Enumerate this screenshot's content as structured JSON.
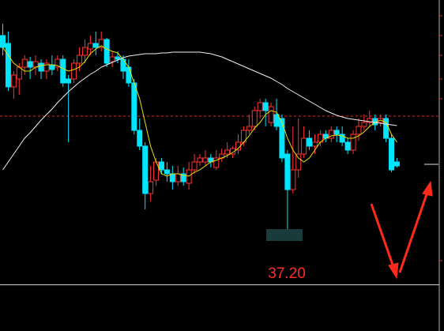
{
  "chart_data": {
    "type": "candlestick",
    "ylim": [
      35.8,
      43.0
    ],
    "up_color": "#ff3232",
    "down_color": "#00e5ff",
    "reference_line": {
      "value": 40.06,
      "color": "#c83232"
    },
    "ohlc": [
      [
        42.1,
        42.4,
        41.6,
        41.8
      ],
      [
        41.9,
        42.2,
        40.7,
        40.8
      ],
      [
        40.8,
        41.2,
        40.5,
        41.1
      ],
      [
        41.0,
        41.4,
        40.6,
        41.3
      ],
      [
        41.3,
        41.6,
        41.1,
        41.5
      ],
      [
        41.44,
        41.56,
        41.0,
        41.3
      ],
      [
        41.3,
        41.6,
        41.1,
        41.44
      ],
      [
        41.4,
        41.5,
        41.0,
        41.2
      ],
      [
        41.2,
        41.5,
        41.0,
        41.4
      ],
      [
        41.36,
        41.6,
        41.1,
        41.24
      ],
      [
        41.3,
        41.6,
        41.2,
        41.5
      ],
      [
        41.5,
        41.6,
        40.8,
        40.9
      ],
      [
        41.0,
        41.1,
        39.4,
        40.9
      ],
      [
        41.0,
        41.5,
        40.9,
        41.4
      ],
      [
        41.4,
        41.8,
        41.2,
        41.6
      ],
      [
        41.6,
        42.0,
        41.4,
        41.8
      ],
      [
        41.76,
        42.1,
        41.6,
        41.9
      ],
      [
        41.9,
        42.2,
        41.6,
        41.8
      ],
      [
        41.8,
        42.2,
        41.7,
        42.0
      ],
      [
        42.0,
        42.04,
        41.3,
        41.4
      ],
      [
        41.44,
        41.7,
        41.3,
        41.56
      ],
      [
        41.56,
        41.7,
        41.4,
        41.5
      ],
      [
        41.5,
        41.6,
        41.0,
        41.2
      ],
      [
        41.3,
        41.5,
        40.8,
        40.9
      ],
      [
        40.9,
        41.0,
        39.6,
        39.7
      ],
      [
        39.7,
        40.0,
        39.2,
        39.3
      ],
      [
        39.3,
        39.4,
        37.7,
        38.1
      ],
      [
        38.1,
        38.8,
        37.9,
        38.4
      ],
      [
        38.44,
        39.0,
        38.3,
        38.9
      ],
      [
        38.9,
        39.0,
        38.6,
        38.7
      ],
      [
        38.7,
        38.9,
        38.4,
        38.6
      ],
      [
        38.6,
        38.8,
        38.2,
        38.4
      ],
      [
        38.4,
        38.8,
        38.3,
        38.6
      ],
      [
        38.6,
        38.76,
        38.3,
        38.4
      ],
      [
        38.36,
        38.9,
        38.2,
        38.7
      ],
      [
        38.7,
        39.1,
        38.6,
        38.9
      ],
      [
        38.9,
        39.1,
        38.8,
        39.0
      ],
      [
        38.9,
        39.2,
        38.8,
        39.0
      ],
      [
        39.0,
        39.1,
        38.76,
        38.9
      ],
      [
        38.76,
        39.2,
        38.7,
        39.0
      ],
      [
        39.0,
        39.24,
        38.9,
        39.1
      ],
      [
        39.1,
        39.4,
        39.0,
        39.2
      ],
      [
        39.1,
        39.3,
        39.0,
        39.24
      ],
      [
        39.2,
        39.6,
        39.1,
        39.4
      ],
      [
        39.4,
        39.8,
        39.3,
        39.7
      ],
      [
        39.7,
        40.1,
        39.6,
        39.8
      ],
      [
        39.8,
        40.3,
        39.7,
        40.2
      ],
      [
        40.2,
        40.5,
        40.0,
        40.4
      ],
      [
        40.4,
        40.5,
        39.8,
        40.2
      ],
      [
        39.9,
        40.4,
        39.8,
        40.3
      ],
      [
        40.1,
        40.5,
        39.7,
        39.8
      ],
      [
        40.0,
        40.1,
        38.9,
        39.0
      ],
      [
        39.1,
        39.2,
        37.2,
        38.2
      ],
      [
        38.2,
        39.8,
        38.1,
        38.7
      ],
      [
        38.7,
        40.0,
        38.5,
        39.1
      ],
      [
        39.1,
        39.8,
        39.0,
        39.5
      ],
      [
        39.5,
        39.7,
        39.2,
        39.3
      ],
      [
        39.3,
        39.6,
        39.1,
        39.4
      ],
      [
        39.4,
        39.7,
        39.3,
        39.6
      ],
      [
        39.6,
        39.7,
        39.4,
        39.5
      ],
      [
        39.5,
        39.8,
        39.4,
        39.7
      ],
      [
        39.7,
        39.8,
        39.4,
        39.6
      ],
      [
        39.6,
        39.8,
        39.3,
        39.4
      ],
      [
        39.4,
        39.5,
        39.1,
        39.2
      ],
      [
        39.2,
        39.7,
        39.1,
        39.6
      ],
      [
        39.6,
        40.0,
        39.44,
        39.8
      ],
      [
        39.8,
        40.1,
        39.7,
        39.9
      ],
      [
        39.9,
        40.2,
        39.8,
        40.0
      ],
      [
        40.0,
        40.1,
        39.7,
        39.84
      ],
      [
        39.9,
        40.1,
        39.8,
        40.0
      ],
      [
        40.0,
        40.1,
        39.4,
        39.5
      ],
      [
        39.5,
        39.6,
        38.64,
        38.7
      ],
      [
        38.9,
        39.0,
        38.76,
        38.8
      ]
    ],
    "lines": [
      {
        "color": "#e8e000",
        "values": [
          41.8,
          41.6,
          41.4,
          41.3,
          41.2,
          41.2,
          41.3,
          41.34,
          41.36,
          41.36,
          41.34,
          41.26,
          41.2,
          41.24,
          41.3,
          41.44,
          41.64,
          41.76,
          41.84,
          41.76,
          41.7,
          41.66,
          41.5,
          41.3,
          40.9,
          40.5,
          39.9,
          39.3,
          38.9,
          38.6,
          38.54,
          38.6,
          38.6,
          38.56,
          38.54,
          38.64,
          38.7,
          38.8,
          38.9,
          38.94,
          39.0,
          39.06,
          39.14,
          39.24,
          39.4,
          39.56,
          39.76,
          39.9,
          40.1,
          40.2,
          40.16,
          39.9,
          39.5,
          39.2,
          39.0,
          38.9,
          39.0,
          39.2,
          39.4,
          39.5,
          39.56,
          39.58,
          39.56,
          39.5,
          39.5,
          39.56,
          39.66,
          39.8,
          39.9,
          39.96,
          39.9,
          39.6,
          39.4
        ]
      },
      {
        "color": "#f0f0f0",
        "values": [
          38.7,
          38.9,
          39.1,
          39.3,
          39.5,
          39.64,
          39.8,
          39.96,
          40.1,
          40.24,
          40.4,
          40.54,
          40.68,
          40.8,
          40.92,
          41.02,
          41.12,
          41.2,
          41.3,
          41.36,
          41.42,
          41.48,
          41.54,
          41.58,
          41.6,
          41.62,
          41.64,
          41.64,
          41.64,
          41.66,
          41.66,
          41.68,
          41.68,
          41.68,
          41.68,
          41.68,
          41.68,
          41.66,
          41.64,
          41.6,
          41.56,
          41.5,
          41.44,
          41.38,
          41.32,
          41.26,
          41.2,
          41.14,
          41.08,
          41.02,
          40.94,
          40.86,
          40.76,
          40.68,
          40.6,
          40.52,
          40.44,
          40.36,
          40.28,
          40.2,
          40.14,
          40.08,
          40.04,
          40.0,
          39.98,
          39.96,
          39.94,
          39.92,
          39.9,
          39.88,
          39.86,
          39.84,
          39.82
        ]
      }
    ],
    "annotation": "37.20"
  }
}
